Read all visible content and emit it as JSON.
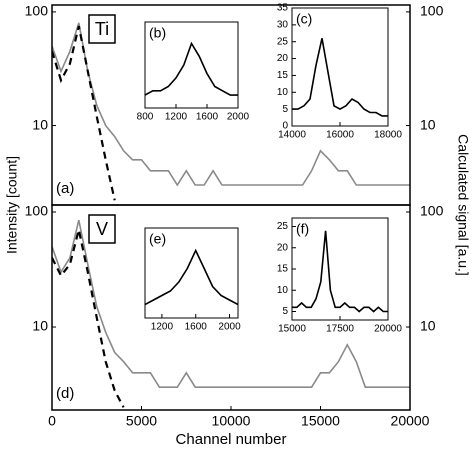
{
  "figure": {
    "ylabel": "Intensity [count]",
    "y2label": "Calculated signal [a.u.]"
  },
  "chart_data": [
    {
      "type": "line",
      "element": "Ti",
      "label": "(a)",
      "log": true,
      "x": [
        0,
        500,
        1000,
        1500,
        2000,
        2500,
        3000,
        3500,
        4000,
        4500,
        5000,
        5500,
        6000,
        6500,
        7000,
        7500,
        8000,
        8500,
        9000,
        9500,
        10000,
        10500,
        11000,
        11500,
        12000,
        12500,
        13000,
        13500,
        14000,
        14500,
        15000,
        15500,
        16000,
        16500,
        17000,
        17500,
        18000,
        18500,
        19000,
        19500,
        20000
      ],
      "xlim": [
        0,
        20000
      ],
      "ylim": [
        2,
        115
      ],
      "yticks": [
        10,
        100
      ],
      "y2lim": [
        2,
        115
      ],
      "y2ticks": [
        10,
        100
      ],
      "series": [
        {
          "color": "#8a8a8a",
          "values": [
            50,
            30,
            45,
            80,
            30,
            15,
            10,
            8,
            6,
            5,
            5,
            4,
            4,
            4,
            3,
            4,
            3,
            3,
            4,
            3,
            3,
            3,
            3,
            3,
            3,
            3,
            3,
            3,
            3,
            4,
            6,
            5,
            4,
            4,
            3,
            3,
            3,
            3,
            3,
            3,
            3
          ]
        },
        {
          "color": "#000000",
          "dash": true,
          "axis": "y2",
          "x": [
            0,
            500,
            1000,
            1500,
            2000,
            2500,
            3000,
            3500
          ],
          "values": [
            45,
            25,
            35,
            75,
            30,
            12,
            5,
            2.2
          ]
        }
      ]
    },
    {
      "type": "line",
      "element": "V",
      "label": "(d)",
      "log": true,
      "xlabel": "Channel number",
      "x": [
        0,
        500,
        1000,
        1500,
        2000,
        2500,
        3000,
        3500,
        4000,
        4500,
        5000,
        5500,
        6000,
        6500,
        7000,
        7500,
        8000,
        8500,
        9000,
        9500,
        10000,
        10500,
        11000,
        11500,
        12000,
        12500,
        13000,
        13500,
        14000,
        14500,
        15000,
        15500,
        16000,
        16500,
        17000,
        17500,
        18000,
        18500,
        19000,
        19500,
        20000
      ],
      "xlim": [
        0,
        20000
      ],
      "ylim": [
        1.9,
        115
      ],
      "xticks": [
        0,
        5000,
        10000,
        15000,
        20000
      ],
      "yticks": [
        10,
        100
      ],
      "y2lim": [
        1.9,
        115
      ],
      "y2ticks": [
        10,
        100
      ],
      "series": [
        {
          "color": "#8a8a8a",
          "values": [
            50,
            30,
            40,
            85,
            35,
            15,
            9,
            6,
            5,
            4,
            4,
            4,
            3,
            3,
            3,
            4,
            3,
            3,
            3,
            3,
            3,
            3,
            3,
            3,
            3,
            3,
            3,
            3,
            3,
            3,
            4,
            4,
            5,
            7,
            5,
            3,
            3,
            3,
            3,
            3,
            3
          ]
        },
        {
          "color": "#000000",
          "dash": true,
          "axis": "y2",
          "x": [
            0,
            500,
            1000,
            1500,
            2000,
            2500,
            3000,
            3500,
            4000
          ],
          "values": [
            40,
            28,
            35,
            70,
            30,
            12,
            5,
            2.8,
            2
          ]
        }
      ]
    },
    {
      "type": "line",
      "label": "(b)",
      "x": [
        800,
        900,
        1000,
        1100,
        1200,
        1300,
        1400,
        1500,
        1600,
        1700,
        1800,
        1900,
        2000
      ],
      "xlim": [
        800,
        2000
      ],
      "ylim": [
        0,
        1
      ],
      "xticks": [
        800,
        1200,
        1600,
        2000
      ],
      "series": [
        {
          "color": "#000000",
          "values": [
            0.15,
            0.2,
            0.2,
            0.25,
            0.35,
            0.5,
            0.75,
            0.6,
            0.4,
            0.25,
            0.2,
            0.15,
            0.15
          ]
        }
      ]
    },
    {
      "type": "line",
      "label": "(c)",
      "x": [
        14000,
        14250,
        14500,
        14750,
        15000,
        15250,
        15500,
        15750,
        16000,
        16250,
        16500,
        16750,
        17000,
        17250,
        17500,
        17750,
        18000
      ],
      "xlim": [
        14000,
        18000
      ],
      "ylim": [
        0,
        35
      ],
      "xticks": [
        14000,
        16000,
        18000
      ],
      "yticks": [
        0,
        5,
        10,
        15,
        20,
        25,
        30,
        35
      ],
      "series": [
        {
          "color": "#000000",
          "values": [
            5,
            5,
            6,
            8,
            18,
            26,
            16,
            6,
            5,
            6,
            8,
            7,
            5,
            4,
            4,
            3,
            3
          ]
        }
      ]
    },
    {
      "type": "line",
      "label": "(e)",
      "x": [
        1000,
        1100,
        1200,
        1300,
        1400,
        1500,
        1600,
        1700,
        1800,
        1900,
        2000,
        2100
      ],
      "xlim": [
        1000,
        2100
      ],
      "ylim": [
        0,
        1
      ],
      "xticks": [
        1200,
        1600,
        2000
      ],
      "series": [
        {
          "color": "#000000",
          "values": [
            0.15,
            0.2,
            0.25,
            0.3,
            0.4,
            0.55,
            0.75,
            0.55,
            0.35,
            0.25,
            0.2,
            0.15
          ]
        }
      ]
    },
    {
      "type": "line",
      "label": "(f)",
      "x": [
        15000,
        15250,
        15500,
        15750,
        16000,
        16250,
        16500,
        16750,
        17000,
        17250,
        17500,
        17750,
        18000,
        18250,
        18500,
        18750,
        19000,
        19250,
        19500,
        19750,
        20000
      ],
      "xlim": [
        15000,
        20000
      ],
      "ylim": [
        3,
        27
      ],
      "xticks": [
        15000,
        17500,
        20000
      ],
      "yticks": [
        5,
        10,
        15,
        20,
        25
      ],
      "series": [
        {
          "color": "#000000",
          "values": [
            6,
            6,
            7,
            6,
            6,
            8,
            12,
            24,
            10,
            6,
            6,
            7,
            6,
            6,
            5,
            6,
            6,
            5,
            6,
            5,
            5
          ]
        }
      ]
    }
  ]
}
